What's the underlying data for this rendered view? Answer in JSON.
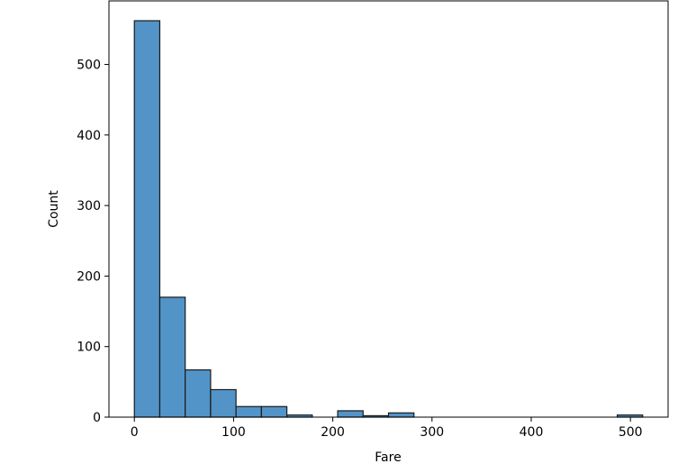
{
  "chart_data": {
    "type": "histogram",
    "xlabel": "Fare",
    "ylabel": "Count",
    "bins": [
      0,
      25.61646,
      51.23292,
      76.84938,
      102.46584,
      128.0823,
      153.69876,
      179.31522,
      204.93168,
      230.54814,
      256.1646,
      281.78106,
      307.39752,
      333.01398,
      358.63044,
      384.2469,
      409.86336,
      435.47982,
      461.09628,
      486.71274,
      512.3292
    ],
    "values": [
      562,
      170,
      67,
      39,
      15,
      15,
      3,
      0,
      9,
      2,
      6,
      0,
      0,
      0,
      0,
      0,
      0,
      0,
      0,
      3
    ],
    "color": "#5294c7",
    "edgecolor": "#1a1a1a",
    "xlim": [
      -25.62,
      537.95
    ],
    "xticks": [
      0,
      100,
      200,
      300,
      400,
      500
    ],
    "ylim": [
      0,
      590.1
    ],
    "yticks": [
      0,
      100,
      200,
      300,
      400,
      500
    ]
  }
}
